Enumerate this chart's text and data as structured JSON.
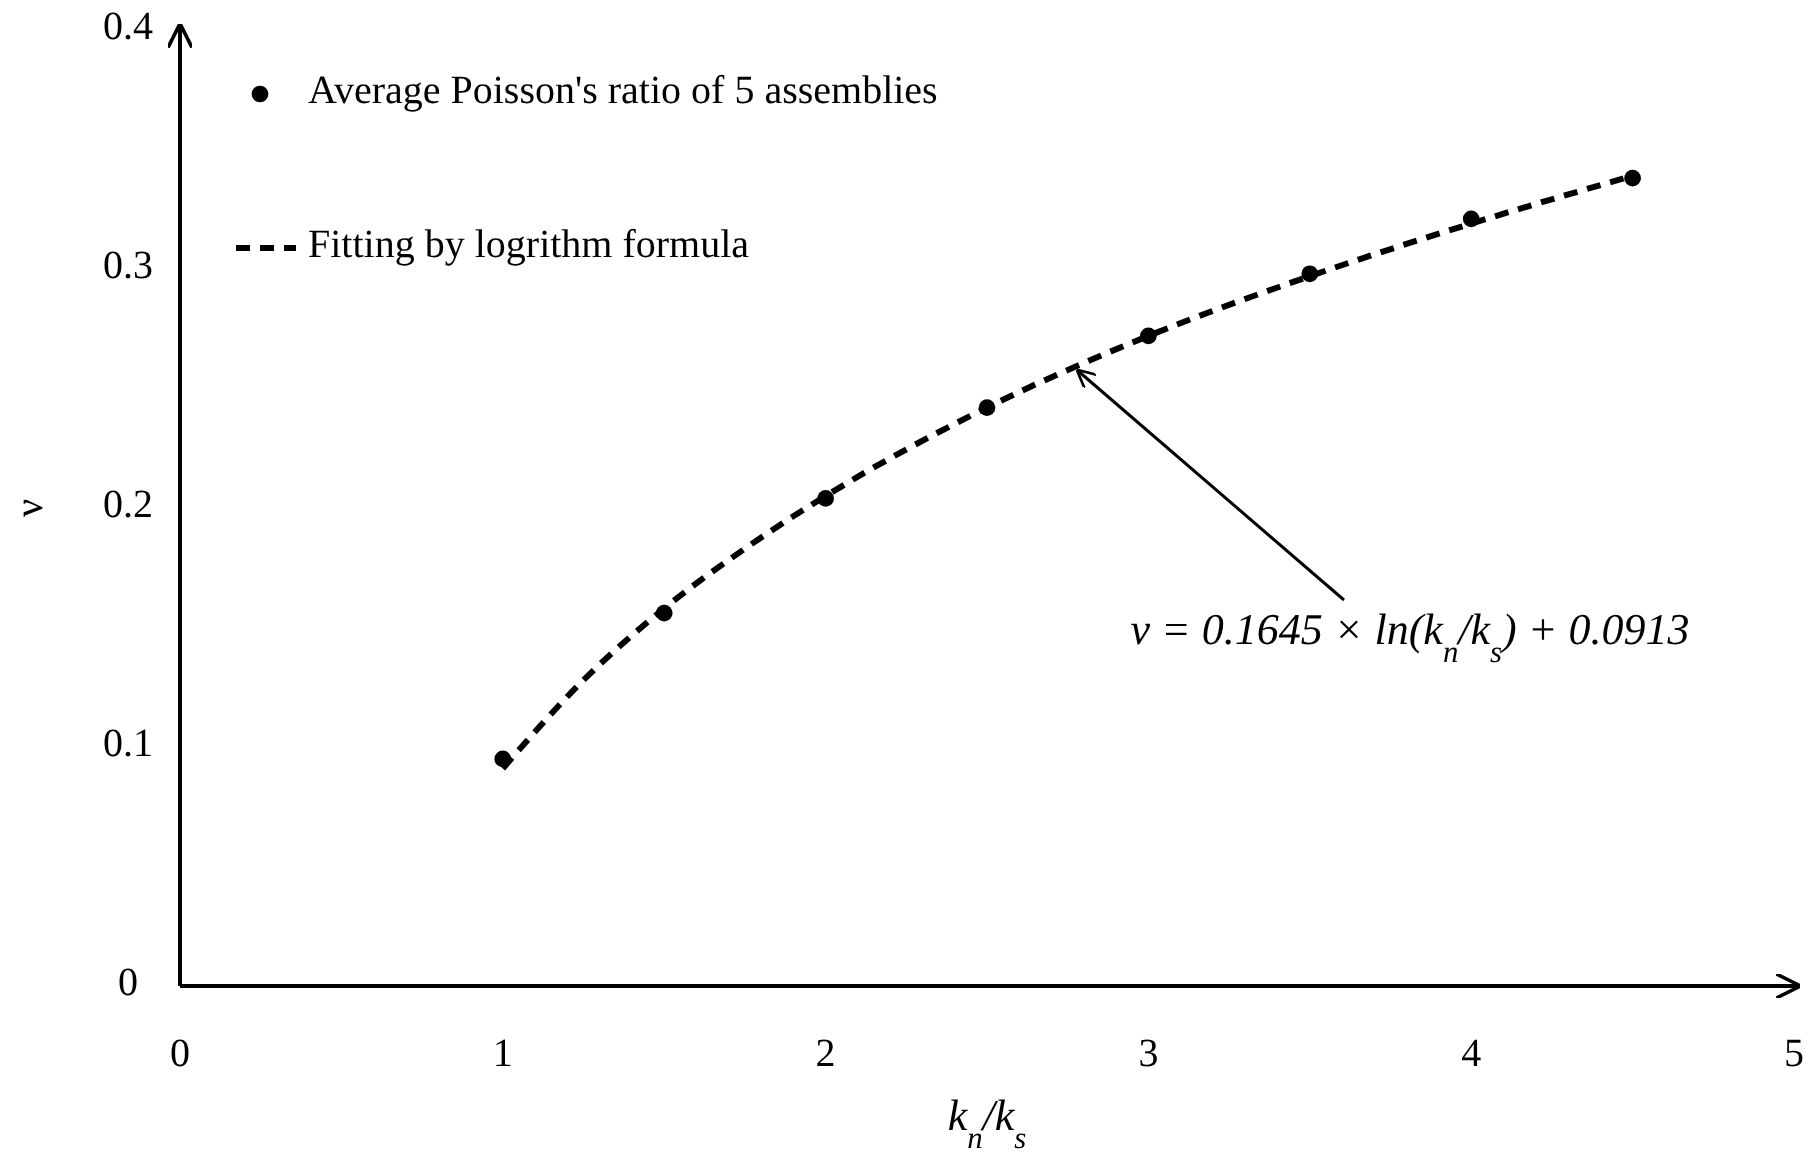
{
  "chart_data": {
    "type": "scatter",
    "xlabel": "k$_{n}$/k$_{s}$",
    "ylabel": "ν",
    "xlim": [
      0,
      5
    ],
    "xticks": [
      0,
      1,
      2,
      3,
      4,
      5
    ],
    "ylim": [
      0,
      0.4
    ],
    "yticks": [
      0,
      0.1,
      0.2,
      0.3,
      0.4
    ],
    "grid": false,
    "legend": "top left",
    "series": [
      {
        "name": "Average Poisson's ratio of 5 assemblies",
        "type": "scatter",
        "marker": "circle",
        "color": "#000000",
        "x": [
          1,
          1.5,
          2,
          2.5,
          3,
          3.5,
          4,
          4.5
        ],
        "values": [
          0.095,
          0.156,
          0.204,
          0.242,
          0.272,
          0.298,
          0.321,
          0.338
        ]
      },
      {
        "name": "Fitting by logrithm formula",
        "type": "line",
        "marker": "none",
        "line_style": "dashed",
        "color": "#000000",
        "x": [
          1,
          1.25,
          1.5,
          1.75,
          2,
          2.5,
          3,
          3.5,
          4,
          4.5
        ],
        "values": [
          0.091,
          0.128,
          0.158,
          0.183,
          0.205,
          0.242,
          0.272,
          0.297,
          0.319,
          0.339
        ]
      }
    ],
    "annotations": [
      {
        "text": "ν = 0.1645 × ln(k$_{n}$/k$_{s}$) + 0.0913",
        "x": 2.77,
        "y": 0.259
      }
    ]
  }
}
